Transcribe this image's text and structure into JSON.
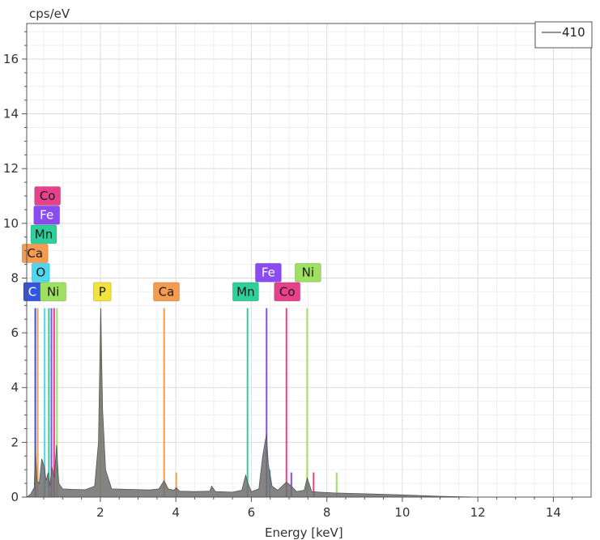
{
  "chart_data": {
    "type": "line",
    "title": "",
    "ylabel": "cps/eV",
    "xlabel": "Energy [keV]",
    "xlim": [
      0.05,
      15.0
    ],
    "ylim": [
      0,
      17.3
    ],
    "x_ticks": [
      2,
      4,
      6,
      8,
      10,
      12,
      14
    ],
    "y_ticks": [
      0,
      2,
      4,
      6,
      8,
      10,
      12,
      14,
      16
    ],
    "grid": true,
    "legend": {
      "position": "top-right",
      "entries": [
        "410"
      ]
    },
    "series": [
      {
        "name": "410",
        "color": "#6e6e6e",
        "points": [
          [
            0.05,
            0.0
          ],
          [
            0.15,
            0.1
          ],
          [
            0.25,
            0.35
          ],
          [
            0.28,
            1.9
          ],
          [
            0.32,
            0.6
          ],
          [
            0.38,
            0.5
          ],
          [
            0.45,
            1.4
          ],
          [
            0.52,
            1.1
          ],
          [
            0.56,
            0.6
          ],
          [
            0.62,
            0.9
          ],
          [
            0.66,
            0.4
          ],
          [
            0.72,
            1.1
          ],
          [
            0.78,
            0.7
          ],
          [
            0.84,
            1.9
          ],
          [
            0.9,
            0.5
          ],
          [
            1.0,
            0.3
          ],
          [
            1.3,
            0.28
          ],
          [
            1.6,
            0.27
          ],
          [
            1.85,
            0.4
          ],
          [
            1.95,
            2.0
          ],
          [
            2.01,
            6.9
          ],
          [
            2.06,
            3.2
          ],
          [
            2.14,
            1.0
          ],
          [
            2.3,
            0.3
          ],
          [
            2.8,
            0.28
          ],
          [
            3.3,
            0.26
          ],
          [
            3.55,
            0.3
          ],
          [
            3.69,
            0.6
          ],
          [
            3.8,
            0.3
          ],
          [
            3.95,
            0.25
          ],
          [
            4.01,
            0.35
          ],
          [
            4.1,
            0.22
          ],
          [
            4.5,
            0.2
          ],
          [
            4.9,
            0.22
          ],
          [
            4.95,
            0.4
          ],
          [
            5.05,
            0.2
          ],
          [
            5.5,
            0.18
          ],
          [
            5.75,
            0.25
          ],
          [
            5.85,
            0.8
          ],
          [
            5.9,
            0.55
          ],
          [
            6.0,
            0.2
          ],
          [
            6.2,
            0.3
          ],
          [
            6.3,
            1.5
          ],
          [
            6.4,
            2.3
          ],
          [
            6.45,
            1.2
          ],
          [
            6.55,
            0.4
          ],
          [
            6.7,
            0.25
          ],
          [
            6.93,
            0.55
          ],
          [
            7.06,
            0.4
          ],
          [
            7.2,
            0.2
          ],
          [
            7.4,
            0.25
          ],
          [
            7.48,
            0.7
          ],
          [
            7.6,
            0.2
          ],
          [
            7.8,
            0.18
          ],
          [
            8.2,
            0.15
          ],
          [
            9.0,
            0.12
          ],
          [
            10.0,
            0.08
          ],
          [
            11.0,
            0.03
          ],
          [
            12.0,
            0.0
          ],
          [
            15.0,
            0.0
          ]
        ]
      }
    ],
    "element_lines": [
      {
        "element": "C",
        "energy": 0.277,
        "color": "#3355dd"
      },
      {
        "element": "Ca",
        "energy": 0.341,
        "color": "#f39c4f"
      },
      {
        "element": "O",
        "energy": 0.525,
        "color": "#4dd8f0"
      },
      {
        "element": "Mn",
        "energy": 0.637,
        "color": "#2ecf9a"
      },
      {
        "element": "Fe",
        "energy": 0.705,
        "color": "#8a4cf0"
      },
      {
        "element": "Co",
        "energy": 0.776,
        "color": "#e8408a"
      },
      {
        "element": "Ni",
        "energy": 0.851,
        "color": "#9ee060"
      },
      {
        "element": "P",
        "energy": 2.013,
        "color": "#f2e23c"
      },
      {
        "element": "Ca",
        "energy": 3.69,
        "color": "#f39c4f"
      },
      {
        "element": "Mn",
        "energy": 5.899,
        "color": "#2ecf9a"
      },
      {
        "element": "Fe",
        "energy": 6.404,
        "color": "#8a4cf0"
      },
      {
        "element": "Co",
        "energy": 6.93,
        "color": "#e8408a"
      },
      {
        "element": "Ni",
        "energy": 7.478,
        "color": "#9ee060"
      }
    ],
    "secondary_lines": [
      {
        "energy": 4.01,
        "height": 0.9,
        "color": "#f39c4f"
      },
      {
        "energy": 6.49,
        "height": 1.0,
        "color": "#2ecf9a"
      },
      {
        "energy": 7.06,
        "height": 0.9,
        "color": "#8a4cf0"
      },
      {
        "energy": 7.65,
        "height": 0.9,
        "color": "#e8408a"
      },
      {
        "energy": 8.26,
        "height": 0.9,
        "color": "#9ee060"
      }
    ],
    "element_labels": [
      {
        "text": "C",
        "energy": 0.2,
        "y": 7.5,
        "color": "#3355dd",
        "text_color": "#ffffff"
      },
      {
        "text": "O",
        "energy": 0.42,
        "y": 8.2,
        "color": "#4dd8f0",
        "text_color": "#1a1a1a"
      },
      {
        "text": "Ca",
        "energy": 0.27,
        "y": 8.9,
        "color": "#f39c4f",
        "text_color": "#1a1a1a"
      },
      {
        "text": "Mn",
        "energy": 0.5,
        "y": 9.6,
        "color": "#2ecf9a",
        "text_color": "#1a1a1a"
      },
      {
        "text": "Fe",
        "energy": 0.58,
        "y": 10.3,
        "color": "#8a4cf0",
        "text_color": "#ffffff"
      },
      {
        "text": "Co",
        "energy": 0.6,
        "y": 11.0,
        "color": "#e8408a",
        "text_color": "#1a1a1a"
      },
      {
        "text": "Ni",
        "energy": 0.75,
        "y": 7.5,
        "color": "#9ee060",
        "text_color": "#1a1a1a"
      },
      {
        "text": "P",
        "energy": 2.05,
        "y": 7.5,
        "color": "#f2e23c",
        "text_color": "#1a1a1a"
      },
      {
        "text": "Ca",
        "energy": 3.75,
        "y": 7.5,
        "color": "#f39c4f",
        "text_color": "#1a1a1a"
      },
      {
        "text": "Mn",
        "energy": 5.85,
        "y": 7.5,
        "color": "#2ecf9a",
        "text_color": "#1a1a1a"
      },
      {
        "text": "Fe",
        "energy": 6.45,
        "y": 8.2,
        "color": "#8a4cf0",
        "text_color": "#ffffff"
      },
      {
        "text": "Co",
        "energy": 6.95,
        "y": 7.5,
        "color": "#e8408a",
        "text_color": "#1a1a1a"
      },
      {
        "text": "Ni",
        "energy": 7.5,
        "y": 8.2,
        "color": "#9ee060",
        "text_color": "#1a1a1a"
      }
    ]
  }
}
